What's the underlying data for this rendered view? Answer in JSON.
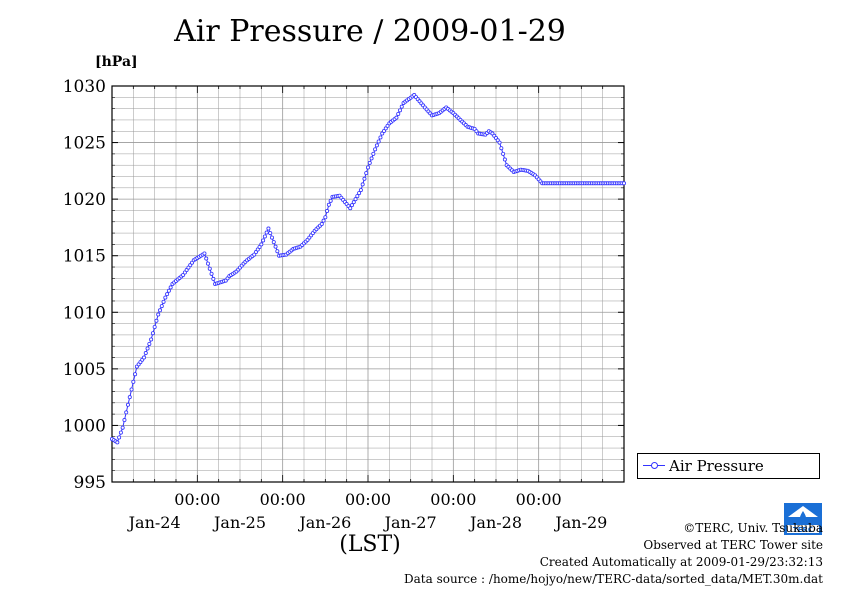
{
  "title": "Air Pressure / 2009-01-29",
  "unit_label": "[hPa]",
  "xlabel": "(LST)",
  "legend": {
    "label": "Air Pressure"
  },
  "colors": {
    "series": "#3333ff",
    "grid": "#999999"
  },
  "credits": {
    "line1": "©TERC, Univ. Tsukuba",
    "line2": "Observed at TERC Tower site",
    "line3": "Created Automatically at 2009-01-29/23:32:13",
    "line4": "Data source : /home/hojyo/new/TERC-data/sorted_data/MET.30m.dat"
  },
  "logo_text": "TERC",
  "chart_data": {
    "type": "line",
    "title": "Air Pressure / 2009-01-29",
    "ylabel": "[hPa]",
    "xlabel": "(LST)",
    "ylim": [
      995,
      1030
    ],
    "yticks": [
      995,
      1000,
      1005,
      1010,
      1015,
      1020,
      1025,
      1030
    ],
    "xlim_hours": [
      0,
      144
    ],
    "xticks": [
      {
        "hour": 24,
        "time": "00:00",
        "day": "Jan-24"
      },
      {
        "hour": 48,
        "time": "00:00",
        "day": "Jan-25"
      },
      {
        "hour": 72,
        "time": "00:00",
        "day": "Jan-26"
      },
      {
        "hour": 96,
        "time": "00:00",
        "day": "Jan-27"
      },
      {
        "hour": 120,
        "time": "00:00",
        "day": "Jan-28"
      },
      {
        "hour": 144,
        "time": "",
        "day": "Jan-29"
      }
    ],
    "grid": true,
    "legend_position": "right",
    "series": [
      {
        "name": "Air Pressure",
        "hours": [
          0,
          1.5,
          3,
          5,
          7,
          9,
          11,
          13,
          15,
          17,
          20,
          23,
          26,
          29,
          32,
          33,
          35,
          37,
          38,
          40,
          42,
          44,
          47,
          49,
          51,
          53,
          55,
          57,
          59,
          60,
          61,
          62,
          64,
          67,
          70,
          72,
          74,
          76,
          78,
          80,
          82,
          85,
          88,
          90,
          92,
          94,
          96,
          98,
          100,
          102,
          103,
          105,
          106,
          107,
          109,
          111,
          113,
          115,
          117,
          119,
          121,
          123,
          125,
          127,
          128,
          130,
          132,
          134,
          136,
          138,
          140,
          142,
          144
        ],
        "values": [
          998.8,
          998.5,
          999.8,
          1002.5,
          1005.2,
          1006.0,
          1007.6,
          1009.8,
          1011.3,
          1012.5,
          1013.3,
          1014.6,
          1015.2,
          1012.5,
          1012.8,
          1013.2,
          1013.6,
          1014.3,
          1014.6,
          1015.1,
          1016.0,
          1017.4,
          1015.0,
          1015.1,
          1015.6,
          1015.8,
          1016.4,
          1017.2,
          1017.8,
          1018.4,
          1019.5,
          1020.2,
          1020.3,
          1019.2,
          1020.8,
          1022.8,
          1024.4,
          1025.8,
          1026.7,
          1027.2,
          1028.5,
          1029.2,
          1028.1,
          1027.4,
          1027.6,
          1028.1,
          1027.6,
          1027.0,
          1026.4,
          1026.2,
          1025.8,
          1025.7,
          1026.0,
          1025.8,
          1025.0,
          1023.0,
          1022.4,
          1022.6,
          1022.5,
          1022.1,
          1021.4,
          1021.4,
          1021.4,
          1021.4,
          1021.4,
          1021.4,
          1021.4,
          1021.4,
          1021.4,
          1021.4,
          1021.4,
          1021.4,
          1021.4
        ]
      }
    ]
  }
}
